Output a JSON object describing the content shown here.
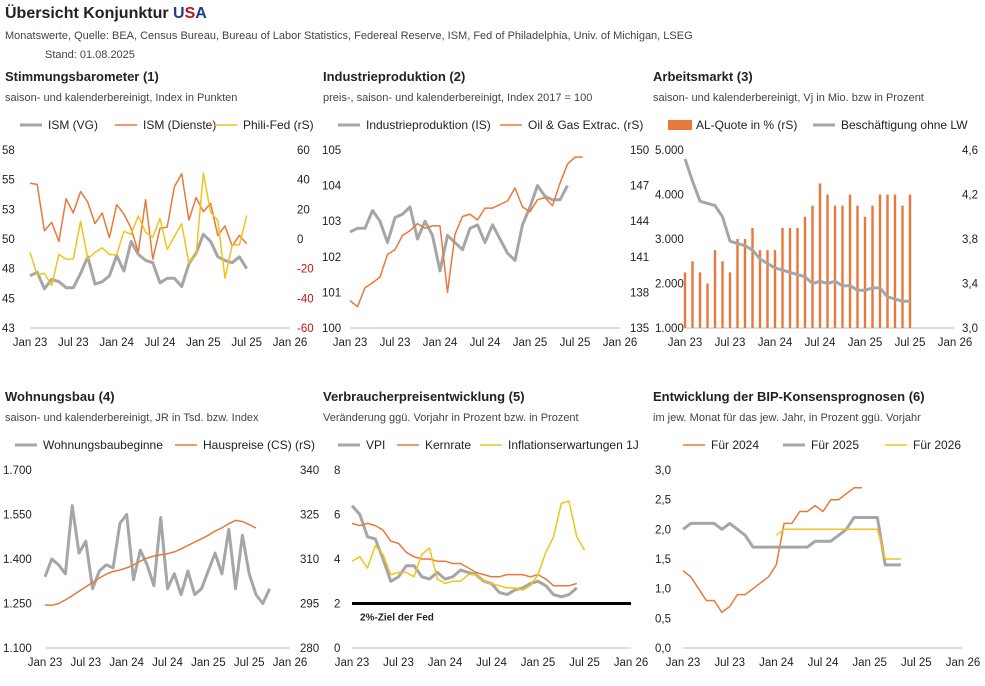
{
  "header": {
    "title_prefix": "Übersicht Konjunktur ",
    "title_u": "U",
    "title_s": "S",
    "title_a": "A",
    "sources": "Monatswerte, Quelle: BEA, Census Bureau, Bureau of Labor Statistics, Federeal Reserve, ISM, Fed of Philadelphia, Univ. of Michigan, LSEG",
    "stand": "Stand:  01.08.2025"
  },
  "colors": {
    "gray": "#a6a6a6",
    "orange": "#e8793a",
    "yellow": "#f2c31a",
    "black": "#000000",
    "red": "#c0141c"
  },
  "chart_data": [
    {
      "type": "line",
      "title": "Stimmungsbarometer (1)",
      "subtitle": "saison- und kalenderbereinigt, Index in Punkten",
      "x_ticks": [
        "Jan 23",
        "Jul 23",
        "Jan 24",
        "Jul 24",
        "Jan 25",
        "Jul 25",
        "Jan 26"
      ],
      "x_range": [
        0,
        36
      ],
      "y_left": {
        "range": [
          43,
          58
        ],
        "ticks": [
          "58",
          "55",
          "53",
          "50",
          "48",
          "45",
          "43"
        ]
      },
      "y_right": {
        "range": [
          -60,
          60
        ],
        "ticks": [
          "60",
          "40",
          "20",
          "0",
          "-20",
          "-40",
          "-60"
        ],
        "negative_red": true
      },
      "series": [
        {
          "name": "ISM (VG)",
          "axis": "left",
          "color": "gray",
          "width": 3,
          "values": [
            47.4,
            47.7,
            46.3,
            47.1,
            46.9,
            46.4,
            46.4,
            47.6,
            49.0,
            46.7,
            46.9,
            47.4,
            49.1,
            47.8,
            50.3,
            49.2,
            48.7,
            48.5,
            46.8,
            47.2,
            47.2,
            46.5,
            48.4,
            49.3,
            50.9,
            50.3,
            49.0,
            48.7,
            48.5,
            49.0,
            48.0
          ]
        },
        {
          "name": "ISM (Dienste)",
          "axis": "left",
          "color": "orange",
          "width": 1.5,
          "values": [
            55.2,
            55.1,
            51.2,
            51.9,
            50.3,
            53.9,
            52.7,
            54.5,
            53.6,
            51.8,
            52.7,
            50.6,
            53.4,
            52.6,
            51.4,
            49.4,
            53.8,
            48.8,
            51.4,
            51.5,
            54.9,
            56.0,
            52.1,
            54.0,
            52.8,
            53.5,
            50.8,
            51.6,
            49.9,
            50.8,
            50.1
          ]
        },
        {
          "name": "Phili-Fed (rS)",
          "axis": "right",
          "color": "yellow",
          "width": 1.5,
          "values": [
            -8.9,
            -24.3,
            -23.2,
            -31.3,
            -10.4,
            -13.7,
            -13.5,
            12.0,
            -13.5,
            -9.0,
            -5.9,
            -10.5,
            -10.6,
            5.2,
            3.2,
            15.5,
            4.5,
            1.3,
            13.9,
            -7.0,
            1.7,
            10.3,
            -16.4,
            -10.9,
            44.3,
            18.1,
            12.5,
            -26.4,
            -4.0,
            -4.0,
            15.9
          ]
        }
      ]
    },
    {
      "type": "line",
      "title": "Industrieproduktion (2)",
      "subtitle": "preis-, saison- und kalenderbereinigt, Index 2017 = 100",
      "x_ticks": [
        "Jan 23",
        "Jul 23",
        "Jan 24",
        "Jul 24",
        "Jan 25",
        "Jul 25",
        "Jan 26"
      ],
      "x_range": [
        0,
        36
      ],
      "y_left": {
        "range": [
          100,
          105
        ],
        "ticks": [
          "105",
          "104",
          "103",
          "102",
          "101",
          "100"
        ]
      },
      "y_right": {
        "range": [
          135,
          150
        ],
        "ticks": [
          "150",
          "147",
          "144",
          "141",
          "138",
          "135"
        ]
      },
      "series": [
        {
          "name": "Industrieproduktion (IS)",
          "axis": "left",
          "color": "gray",
          "width": 3,
          "values": [
            102.7,
            102.8,
            102.8,
            103.3,
            103.0,
            102.4,
            103.1,
            103.2,
            103.4,
            102.5,
            103.0,
            102.6,
            101.6,
            102.6,
            102.4,
            102.2,
            102.8,
            102.9,
            102.4,
            102.9,
            102.5,
            102.1,
            101.9,
            102.9,
            103.4,
            104.0,
            103.7,
            103.6,
            103.6,
            104.0
          ]
        },
        {
          "name": "Oil & Gas Extrac. (rS)",
          "axis": "right",
          "color": "orange",
          "width": 1.5,
          "values": [
            137.3,
            136.8,
            138.4,
            138.8,
            139.3,
            141.2,
            141.6,
            142.8,
            143.2,
            143.8,
            143.4,
            143.6,
            143.6,
            138.0,
            142.9,
            144.4,
            144.6,
            144.1,
            145.1,
            145.1,
            145.4,
            145.7,
            146.8,
            145.2,
            144.8,
            145.8,
            146.0,
            145.3,
            147.2,
            148.8,
            149.4,
            149.4
          ]
        }
      ]
    },
    {
      "type": "bar+line",
      "title": "Arbeitsmarkt (3)",
      "subtitle": "saison- und kalenderbereinigt, Vj in Mio. bzw in Prozent",
      "x_ticks": [
        "Jan 23",
        "Jul 23",
        "Jan 24",
        "Jul 24",
        "Jan 25",
        "Jul 25",
        "Jan 26"
      ],
      "x_range": [
        0,
        36
      ],
      "y_left": {
        "range": [
          1000,
          5000
        ],
        "ticks": [
          "5.000",
          "4.000",
          "3.000",
          "2.000",
          "1.000"
        ]
      },
      "y_right": {
        "range": [
          3.0,
          4.6
        ],
        "ticks": [
          "4,6",
          "4,2",
          "3,8",
          "3,4",
          "3,0"
        ]
      },
      "series": [
        {
          "name": "AL-Quote in % (rS)",
          "axis": "right",
          "color": "orange",
          "kind": "bar",
          "values": [
            3.5,
            3.6,
            3.5,
            3.4,
            3.7,
            3.6,
            3.5,
            3.8,
            3.8,
            3.9,
            3.7,
            3.7,
            3.7,
            3.9,
            3.9,
            3.9,
            4.0,
            4.1,
            4.3,
            4.2,
            4.1,
            4.1,
            4.2,
            4.1,
            4.0,
            4.1,
            4.2,
            4.2,
            4.2,
            4.1,
            4.2
          ]
        },
        {
          "name": "Beschäftigung ohne LW",
          "axis": "left",
          "color": "gray",
          "width": 3,
          "kind": "line",
          "values": [
            4800,
            4300,
            3850,
            3800,
            3750,
            3500,
            2950,
            2900,
            2850,
            2750,
            2550,
            2450,
            2350,
            2300,
            2250,
            2200,
            2150,
            2000,
            2050,
            2000,
            2050,
            1950,
            1950,
            1850,
            1850,
            1900,
            1900,
            1700,
            1650,
            1600,
            1600
          ]
        }
      ]
    },
    {
      "type": "line",
      "title": "Wohnungsbau (4)",
      "subtitle": "saison- und kalenderbereinigt, JR in Tsd. bzw. Index",
      "x_ticks": [
        "Jan 23",
        "Jul 23",
        "Jan 24",
        "Jul 24",
        "Jan 25",
        "Jul 25",
        "Jan 26"
      ],
      "x_range": [
        0,
        36
      ],
      "y_left": {
        "range": [
          1100,
          1700
        ],
        "ticks": [
          "1.700",
          "1.550",
          "1.400",
          "1.250",
          "1.100"
        ]
      },
      "y_right": {
        "range": [
          280,
          340
        ],
        "ticks": [
          "340",
          "325",
          "310",
          "295",
          "280"
        ]
      },
      "series": [
        {
          "name": "Wohnungsbaubeginne",
          "axis": "left",
          "color": "gray",
          "width": 3,
          "values": [
            1340,
            1400,
            1380,
            1350,
            1580,
            1420,
            1460,
            1300,
            1360,
            1380,
            1370,
            1520,
            1550,
            1330,
            1430,
            1380,
            1310,
            1540,
            1300,
            1350,
            1280,
            1360,
            1280,
            1300,
            1360,
            1420,
            1350,
            1500,
            1300,
            1480,
            1350,
            1280,
            1250,
            1300
          ]
        },
        {
          "name": "Hauspreise (CS) (rS)",
          "axis": "right",
          "color": "orange",
          "width": 1.5,
          "values": [
            294.5,
            294.4,
            295.0,
            296.2,
            297.6,
            299.1,
            300.6,
            302.1,
            303.6,
            304.9,
            305.8,
            306.3,
            307.0,
            308.0,
            309.3,
            310.3,
            311.0,
            311.4,
            311.8,
            312.4,
            313.4,
            314.6,
            315.7,
            316.8,
            318.0,
            319.4,
            320.5,
            321.9,
            323.0,
            322.6,
            321.6,
            320.4
          ]
        }
      ]
    },
    {
      "type": "line",
      "title": "Verbraucherpreisentwicklung (5)",
      "subtitle": "Veränderung ggü. Vorjahr in Prozent bzw. in Prozent",
      "x_ticks": [
        "Jan 23",
        "Jul 23",
        "Jan 24",
        "Jul 24",
        "Jan 25",
        "Jul 25",
        "Jan 26"
      ],
      "x_range": [
        0,
        36
      ],
      "y_left": {
        "range": [
          0,
          8
        ],
        "ticks": [
          "8",
          "6",
          "4",
          "2",
          "0"
        ]
      },
      "reference_line": {
        "value": 2,
        "label": "2%-Ziel der Fed"
      },
      "series": [
        {
          "name": "VPI",
          "axis": "left",
          "color": "gray",
          "width": 3,
          "values": [
            6.4,
            6.0,
            5.0,
            4.9,
            4.0,
            3.0,
            3.2,
            3.7,
            3.7,
            3.2,
            3.1,
            3.4,
            3.1,
            3.2,
            3.5,
            3.4,
            3.3,
            3.0,
            2.9,
            2.5,
            2.4,
            2.6,
            2.7,
            2.9,
            3.0,
            2.8,
            2.4,
            2.3,
            2.4,
            2.7
          ]
        },
        {
          "name": "Kernrate",
          "axis": "left",
          "color": "orange",
          "width": 1.5,
          "values": [
            5.6,
            5.5,
            5.6,
            5.5,
            5.3,
            4.8,
            4.7,
            4.3,
            4.1,
            4.0,
            4.0,
            3.9,
            3.9,
            3.8,
            3.8,
            3.6,
            3.4,
            3.3,
            3.2,
            3.2,
            3.3,
            3.3,
            3.3,
            3.2,
            3.3,
            3.1,
            2.8,
            2.8,
            2.8,
            2.9
          ]
        },
        {
          "name": "Inflationserwartungen 1J",
          "axis": "left",
          "color": "yellow",
          "width": 1.5,
          "values": [
            3.9,
            4.1,
            3.6,
            4.6,
            4.2,
            3.3,
            3.4,
            3.4,
            3.2,
            4.2,
            4.5,
            3.1,
            2.9,
            3.0,
            3.0,
            3.3,
            3.3,
            3.0,
            2.9,
            2.8,
            2.7,
            2.7,
            2.6,
            2.8,
            3.3,
            4.3,
            5.0,
            6.5,
            6.6,
            5.0,
            4.4
          ]
        }
      ]
    },
    {
      "type": "line",
      "title": "Entwicklung der BIP-Konsensprognosen (6)",
      "subtitle": "im jew. Monat für das jew. Jahr, in Prozent ggü. Vorjahr",
      "x_ticks": [
        "Jan 23",
        "Jul 23",
        "Jan 24",
        "Jul 24",
        "Jan 25",
        "Jul 25",
        "Jan 26"
      ],
      "x_range": [
        0,
        36
      ],
      "y_left": {
        "range": [
          0.0,
          3.0
        ],
        "ticks": [
          "3,0",
          "2,5",
          "2,0",
          "1,5",
          "1,0",
          "0,5",
          "0,0"
        ]
      },
      "series": [
        {
          "name": "Für 2024",
          "axis": "left",
          "color": "orange",
          "width": 1.5,
          "values": [
            1.3,
            1.2,
            1.0,
            0.8,
            0.8,
            0.6,
            0.7,
            0.9,
            0.9,
            1.0,
            1.1,
            1.2,
            1.4,
            2.1,
            2.1,
            2.3,
            2.3,
            2.4,
            2.3,
            2.5,
            2.5,
            2.6,
            2.7,
            2.7
          ]
        },
        {
          "name": "Für 2025",
          "axis": "left",
          "color": "gray",
          "width": 3,
          "values": [
            2.0,
            2.1,
            2.1,
            2.1,
            2.1,
            2.0,
            2.1,
            2.0,
            1.9,
            1.7,
            1.7,
            1.7,
            1.7,
            1.7,
            1.7,
            1.7,
            1.7,
            1.8,
            1.8,
            1.8,
            1.9,
            2.0,
            2.2,
            2.2,
            2.2,
            2.2,
            1.4,
            1.4,
            1.4
          ]
        },
        {
          "name": "Für 2026",
          "axis": "left",
          "color": "yellow",
          "width": 1.5,
          "values": [
            1.9,
            2.0,
            2.0,
            2.0,
            2.0,
            2.0,
            2.0,
            2.0,
            2.0,
            2.0,
            2.0,
            2.0,
            2.0,
            2.0,
            1.5,
            1.5,
            1.5
          ],
          "x_start": 12
        }
      ]
    }
  ]
}
